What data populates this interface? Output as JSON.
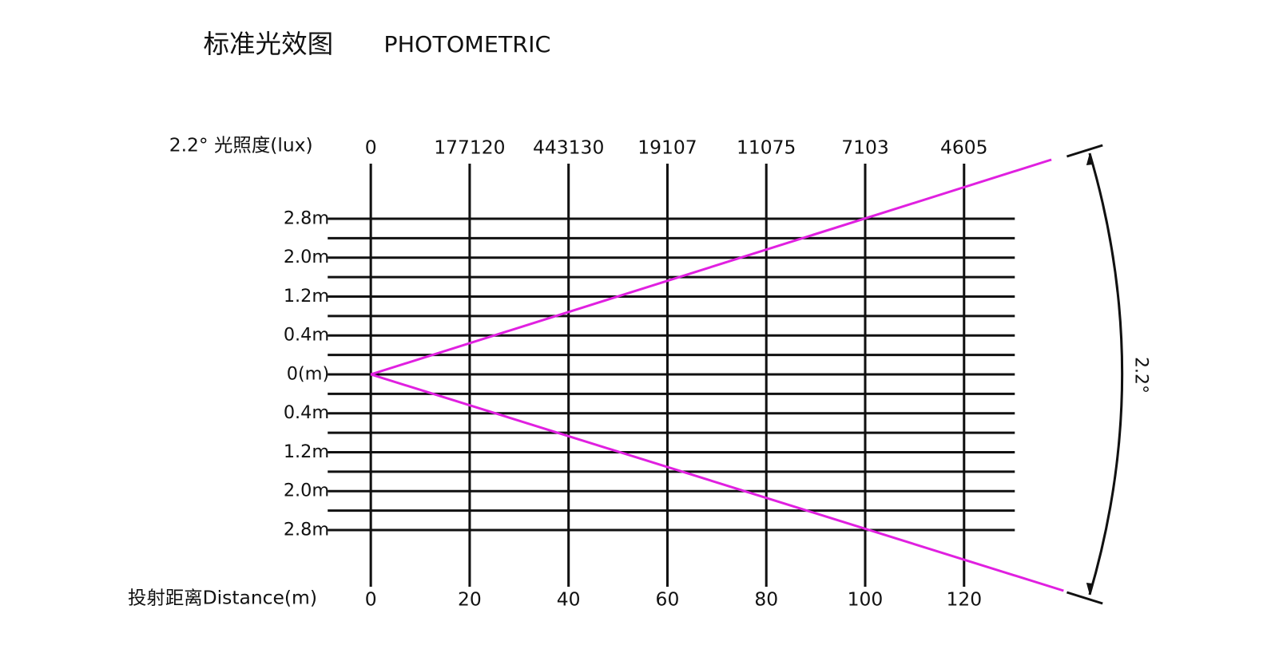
{
  "title": "标准光效图",
  "subtitle": "PHOTOMETRIC",
  "lux_label": "2.2° 光照度(lux)",
  "lux_values": [
    "0",
    "177120",
    "443130",
    "19107",
    "11075",
    "7103",
    "4605"
  ],
  "distance_label": "投射距离Distance(m)",
  "distances": [
    "0",
    "20",
    "40",
    "60",
    "80",
    "100",
    "120"
  ],
  "heights": [
    "2.8m",
    "2.0m",
    "1.2m",
    "0.4m",
    "0(m)",
    "0.4m",
    "1.2m",
    "2.0m",
    "2.8m"
  ],
  "angle_label": "2.2°"
}
